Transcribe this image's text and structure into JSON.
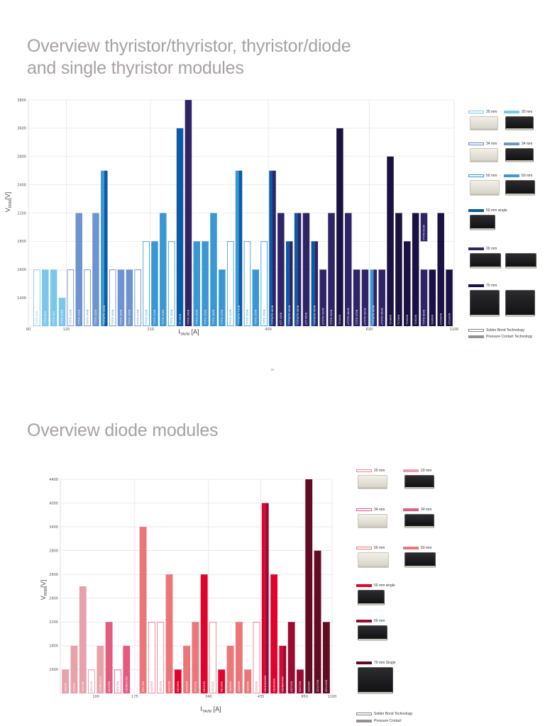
{
  "titles": {
    "top": [
      "Overview thyristor/thyristor, thyristor/diode",
      "and single thyristor modules"
    ],
    "bottom": "Overview diode modules",
    "separator": "»"
  },
  "chart_data": [
    {
      "type": "bar",
      "ylabel": "V",
      "ylabel_sub": "RRM",
      "ylabel_unit": "[V]",
      "xlabel": "I",
      "xlabel_sub": "TAVM",
      "xlabel_unit": "[A]",
      "y_ticks": [
        "1400",
        "1600",
        "1800",
        "2200",
        "2400",
        "2800",
        "3600",
        "3800"
      ],
      "x_ticks": [
        "60",
        "120",
        "210",
        "400",
        "630",
        "1100"
      ],
      "grid": true,
      "legend_placement": "right",
      "colors": {
        "20o": "#7cc6ec",
        "20f": "#7cc6ec",
        "34o": "#5f86c6",
        "34f": "#6f93cf",
        "50o": "#3196d3",
        "50f": "#3a97d4",
        "50s": "#0b5aa6",
        "60": "#2e2466",
        "70": "#1b1142"
      },
      "bars": [
        {
          "label": "TT/TD 61N",
          "value": 1600,
          "type": "20o"
        },
        {
          "label": "TT/TD 61N",
          "value": 1600,
          "type": "20f"
        },
        {
          "label": "TT/TD 92N",
          "value": 1600,
          "type": "20f"
        },
        {
          "label": "TT/TD 104N",
          "value": 1400,
          "type": "20f"
        },
        {
          "label": "TT/TD 121N",
          "value": 1600,
          "type": "34o"
        },
        {
          "label": "TT/TD 122N",
          "value": 2200,
          "type": "34f"
        },
        {
          "label": "TT/TD 140N",
          "value": 1600,
          "type": "34o"
        },
        {
          "label": "TT/TD 140N",
          "value": 2200,
          "type": "34f"
        },
        {
          "label": "TT/TD/TD 162N",
          "value": 2600,
          "type": "50f",
          "split": "50s"
        },
        {
          "label": "TT/TD 160N",
          "value": 1600,
          "type": "34o"
        },
        {
          "label": "TT/TD 160N",
          "value": 1600,
          "type": "34f"
        },
        {
          "label": "TT/TD 160N",
          "value": 1600,
          "type": "34f"
        },
        {
          "label": "TT/TD 175N",
          "value": 1600,
          "type": "34o"
        },
        {
          "label": "TT/TD 190N",
          "value": 1800,
          "type": "50o"
        },
        {
          "label": "TT/TD 210N",
          "value": 1800,
          "type": "50f"
        },
        {
          "label": "TT/TD 215N",
          "value": 2200,
          "type": "50f"
        },
        {
          "label": "TT/TD 250N",
          "value": 1800,
          "type": "50o"
        },
        {
          "label": "TZ 240N",
          "value": 3600,
          "type": "50s"
        },
        {
          "label": "TT/TD 240N",
          "value": 3800,
          "type": "60"
        },
        {
          "label": "TT/TD 250N",
          "value": 1800,
          "type": "50f"
        },
        {
          "label": "TT/TD 251N",
          "value": 1800,
          "type": "50f"
        },
        {
          "label": "TT/TD 260N",
          "value": 2200,
          "type": "50f"
        },
        {
          "label": "TT/TD 270N",
          "value": 1600,
          "type": "50f"
        },
        {
          "label": "TT/TD 300N",
          "value": 1800,
          "type": "50o"
        },
        {
          "label": "TT/TD/TD 310N",
          "value": 2600,
          "type": "50f",
          "split": "50s"
        },
        {
          "label": "TT/TD 320N",
          "value": 1800,
          "type": "50o"
        },
        {
          "label": "TT/TD 330N",
          "value": 1600,
          "type": "50f"
        },
        {
          "label": "TT/TD 350N",
          "value": 1800,
          "type": "50o"
        },
        {
          "label": "TT/TD/TD 400N",
          "value": 2600,
          "type": "50s",
          "split": "60"
        },
        {
          "label": "eTT 430N",
          "value": 2200,
          "type": "60"
        },
        {
          "label": "TT/TD/TD 425N",
          "value": 1800,
          "type": "50s",
          "split": "60"
        },
        {
          "label": "TT/TD/TD 450N",
          "value": 2200,
          "type": "50s",
          "split": "60"
        },
        {
          "label": "eTT 450N",
          "value": 2200,
          "type": "60"
        },
        {
          "label": "TT/TD/TD 500N",
          "value": 1800,
          "type": "50s",
          "split": "60"
        },
        {
          "label": "eTT/TD 510N",
          "value": 1600,
          "type": "60"
        },
        {
          "label": "TT/TD 520N",
          "value": 2200,
          "type": "60"
        },
        {
          "label": "T2500N",
          "value": 3600,
          "type": "70"
        },
        {
          "label": "eTT/TD 540N",
          "value": 2200,
          "type": "60"
        },
        {
          "label": "TT/TD 570N",
          "value": 1600,
          "type": "60"
        },
        {
          "label": "eTT/TD 600N",
          "value": 1600,
          "type": "60"
        },
        {
          "label": "TT/TD/TD 600N",
          "value": 1600,
          "type": "50f",
          "split": "60"
        },
        {
          "label": "eTT/TD 650N",
          "value": 1600,
          "type": "60"
        },
        {
          "label": "T2080N",
          "value": 2800,
          "type": "70"
        },
        {
          "label": "T2740N",
          "value": 2200,
          "type": "70"
        },
        {
          "label": "T2600N",
          "value": 1800,
          "type": "70"
        },
        {
          "label": "T2810N",
          "value": 2200,
          "type": "70"
        },
        {
          "label": "TT/TD 820N",
          "value": 1600,
          "type": "60",
          "extra_label": "TT/TD 810N"
        },
        {
          "label": "T2860N",
          "value": 1600,
          "type": "70"
        },
        {
          "label": "eT2500N",
          "value": 2200,
          "type": "70"
        },
        {
          "label": "eT1100N",
          "value": 1600,
          "type": "70"
        }
      ],
      "legend": [
        {
          "items": [
            {
              "type": "20o",
              "label": "20 mm"
            },
            {
              "type": "20f",
              "label": "20 mm"
            }
          ],
          "modules": [
            "light",
            "dark"
          ]
        },
        {
          "items": [
            {
              "type": "34o",
              "label": "34 mm"
            },
            {
              "type": "34f",
              "label": "34 mm"
            }
          ],
          "modules": [
            "light",
            "dark"
          ]
        },
        {
          "items": [
            {
              "type": "50o",
              "label": "50 mm"
            },
            {
              "type": "50f",
              "label": "50 mm"
            }
          ],
          "modules": [
            "light",
            "dark"
          ]
        },
        {
          "items": [
            {
              "type": "50s",
              "label": "50 mm single"
            }
          ],
          "modules": [
            "dark"
          ]
        },
        {
          "items": [
            {
              "type": "60",
              "label": "60 mm"
            }
          ],
          "modules": [
            "dark",
            "dark"
          ]
        },
        {
          "items": [
            {
              "type": "70",
              "label": "70 mm"
            }
          ],
          "modules": [
            "dark",
            "dark"
          ]
        }
      ],
      "technology_legend": [
        {
          "style": "outline",
          "color": "#8a8085",
          "label": "Solder Bond Technology"
        },
        {
          "style": "fill",
          "color": "#9a8e93",
          "label": "Pressure Contact Technology"
        }
      ]
    },
    {
      "type": "bar",
      "ylabel": "V",
      "ylabel_sub": "RRM",
      "ylabel_unit": "[V]",
      "xlabel": "I",
      "xlabel_sub": "TAVM",
      "xlabel_unit": "[A]",
      "y_ticks": [
        "1600",
        "1800",
        "2200",
        "2400",
        "2600",
        "2800",
        "3400",
        "4000",
        "4400"
      ],
      "x_ticks": [
        "100",
        "175",
        "340",
        "435",
        "950",
        "1100"
      ],
      "grid": true,
      "legend_placement": "right",
      "colors": {
        "20o": "#e58c95",
        "20f": "#e7a1a8",
        "34o": "#e45b7f",
        "34f": "#e45b7f",
        "50o": "#ec7579",
        "50f": "#ec7579",
        "50s": "#e0032e",
        "60": "#9b0a33",
        "70": "#620c24"
      },
      "bars": [
        {
          "label": "DD61N",
          "value": 1600,
          "type": "20f"
        },
        {
          "label": "DD89N",
          "value": 1800,
          "type": "20f"
        },
        {
          "label": "DD104N",
          "value": 2500,
          "type": "20f"
        },
        {
          "label": "DD121N",
          "value": 1600,
          "type": "20o"
        },
        {
          "label": "DD/ND121N",
          "value": 1800,
          "type": "20f"
        },
        {
          "label": "DD160N",
          "value": 2200,
          "type": "34f"
        },
        {
          "label": "DD170N",
          "value": 1600,
          "type": "34o"
        },
        {
          "label": "DD/ND171N",
          "value": 1800,
          "type": "34f"
        },
        {
          "label": "DD175N",
          "value": 3400,
          "type": "50f",
          "gap_before": true
        },
        {
          "label": "DD180N",
          "value": 2200,
          "type": "50o"
        },
        {
          "label": "DD210N",
          "value": 2200,
          "type": "50o"
        },
        {
          "label": "DD231N",
          "value": 2600,
          "type": "50f"
        },
        {
          "label": "ND260N",
          "value": 1600,
          "type": "50s"
        },
        {
          "label": "DD260N",
          "value": 1800,
          "type": "50f"
        },
        {
          "label": "DD261N",
          "value": 2200,
          "type": "50f"
        },
        {
          "label": "ND261N",
          "value": 2600,
          "type": "50s"
        },
        {
          "label": "DD350N",
          "value": 2200,
          "type": "50o"
        },
        {
          "label": "ND350N",
          "value": 1600,
          "type": "50s"
        },
        {
          "label": "DD380N",
          "value": 1800,
          "type": "50f"
        },
        {
          "label": "DD400N",
          "value": 2200,
          "type": "50f"
        },
        {
          "label": "DD405N",
          "value": 1600,
          "type": "50f"
        },
        {
          "label": "DD435N",
          "value": 2200,
          "type": "50o"
        },
        {
          "label": "DD/D/D435N",
          "value": 4000,
          "type": "50s",
          "split": "60"
        },
        {
          "label": "DD/D540N",
          "value": 2600,
          "type": "50s"
        },
        {
          "label": "DD/ND540N",
          "value": 1800,
          "type": "50s",
          "split": "60"
        },
        {
          "label": "DD700N",
          "value": 2200,
          "type": "60"
        },
        {
          "label": "DD710N",
          "value": 1600,
          "type": "60"
        },
        {
          "label": "DZ950N",
          "value": 4400,
          "type": "70"
        },
        {
          "label": "DZ1070N",
          "value": 2800,
          "type": "70"
        },
        {
          "label": "DZ1100N",
          "value": 2200,
          "type": "70"
        }
      ],
      "legend": [
        {
          "items": [
            {
              "type": "20o",
              "label": "20 mm"
            },
            {
              "type": "20f",
              "label": "20 mm"
            }
          ],
          "modules": [
            "light",
            "dark"
          ]
        },
        {
          "items": [
            {
              "type": "34o",
              "label": "34 mm"
            },
            {
              "type": "34f",
              "label": "34 mm"
            }
          ],
          "modules": [
            "light",
            "dark"
          ]
        },
        {
          "items": [
            {
              "type": "50o",
              "label": "50 mm"
            },
            {
              "type": "50f",
              "label": "50 mm"
            }
          ],
          "modules": [
            "light",
            "dark"
          ]
        },
        {
          "items": [
            {
              "type": "50s",
              "label": "50 mm single"
            }
          ],
          "modules": [
            "dark"
          ]
        },
        {
          "items": [
            {
              "type": "60",
              "label": "60 mm"
            }
          ],
          "modules": [
            "dark"
          ]
        },
        {
          "items": [
            {
              "type": "70",
              "label": "70 mm Single"
            }
          ],
          "modules": [
            "dark"
          ]
        }
      ],
      "technology_legend": [
        {
          "style": "outline",
          "color": "#8a8085",
          "label": "Solder Bond Technology"
        },
        {
          "style": "fill",
          "color": "#9a8e93",
          "label": "Pressure Contact"
        }
      ]
    }
  ]
}
